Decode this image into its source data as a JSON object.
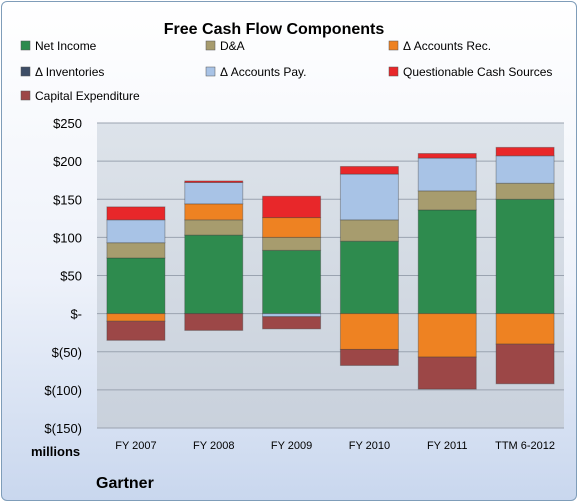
{
  "chart_data": {
    "type": "bar",
    "stacked": true,
    "title": "Free Cash Flow Components",
    "unit_label": "millions",
    "company": "Gartner",
    "categories": [
      "FY 2007",
      "FY 2008",
      "FY 2009",
      "FY 2010",
      "FY 2011",
      "TTM 6-2012"
    ],
    "ylim": [
      -150,
      250
    ],
    "yticks": [
      -150,
      -100,
      -50,
      0,
      50,
      100,
      150,
      200,
      250
    ],
    "ytick_labels": [
      "$(150)",
      "$(100)",
      "$(50)",
      "$-",
      "$50",
      "$100",
      "$150",
      "$200",
      "$250"
    ],
    "grid": true,
    "legend_position": "top",
    "series": [
      {
        "name": "Net Income",
        "color": "#2e8b4e",
        "values": [
          73,
          103,
          83,
          95,
          136,
          150
        ]
      },
      {
        "name": "D&A",
        "color": "#a79c6e",
        "values": [
          20,
          20,
          17,
          28,
          25,
          21
        ]
      },
      {
        "name": "Δ Accounts Rec.",
        "color": "#ee8222",
        "values": [
          -10,
          21,
          26,
          -47,
          -57,
          -40
        ]
      },
      {
        "name": "Δ Inventories",
        "color": "#3d4d66",
        "values": [
          0,
          0,
          0,
          0,
          0,
          0
        ]
      },
      {
        "name": "Δ Accounts Pay.",
        "color": "#a8c3e6",
        "values": [
          30,
          28,
          -4,
          60,
          43,
          36
        ]
      },
      {
        "name": "Questionable Cash Sources",
        "color": "#e8272a",
        "values": [
          17,
          2,
          28,
          10,
          6,
          11
        ]
      },
      {
        "name": "Capital Expenditure",
        "color": "#9c4747",
        "values": [
          -25,
          -22,
          -16,
          -21,
          -42,
          -52
        ]
      }
    ]
  }
}
